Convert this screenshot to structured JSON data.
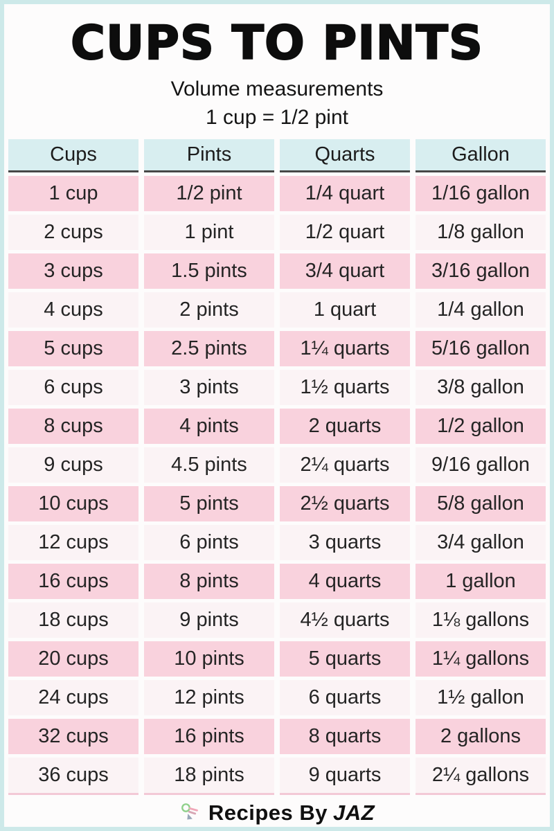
{
  "chart_data": {
    "type": "table",
    "title": "CUPS TO PINTS",
    "subtitle": "Volume measurements",
    "note": "1 cup = 1/2 pint",
    "columns": [
      "Cups",
      "Pints",
      "Quarts",
      "Gallon"
    ],
    "rows": [
      [
        "1 cup",
        "1/2 pint",
        "1/4 quart",
        "1/16 gallon"
      ],
      [
        "2 cups",
        "1 pint",
        "1/2 quart",
        "1/8 gallon"
      ],
      [
        "3 cups",
        "1.5 pints",
        "3/4 quart",
        "3/16 gallon"
      ],
      [
        "4 cups",
        "2 pints",
        "1 quart",
        "1/4 gallon"
      ],
      [
        "5 cups",
        "2.5 pints",
        "1¼ quarts",
        "5/16 gallon"
      ],
      [
        "6 cups",
        "3 pints",
        "1½ quarts",
        "3/8 gallon"
      ],
      [
        "8 cups",
        "4 pints",
        "2 quarts",
        "1/2 gallon"
      ],
      [
        "9 cups",
        "4.5 pints",
        "2¼ quarts",
        "9/16 gallon"
      ],
      [
        "10 cups",
        "5 pints",
        "2½ quarts",
        "5/8 gallon"
      ],
      [
        "12 cups",
        "6 pints",
        "3 quarts",
        "3/4 gallon"
      ],
      [
        "16 cups",
        "8 pints",
        "4 quarts",
        "1 gallon"
      ],
      [
        "18 cups",
        "9 pints",
        "4½ quarts",
        "1⅛ gallons"
      ],
      [
        "20 cups",
        "10 pints",
        "5 quarts",
        "1¼ gallons"
      ],
      [
        "24 cups",
        "12 pints",
        "6 quarts",
        "1½ gallon"
      ],
      [
        "32 cups",
        "16 pints",
        "8 quarts",
        "2 gallons"
      ],
      [
        "36 cups",
        "18 pints",
        "9 quarts",
        "2¼ gallons"
      ]
    ],
    "layout": {
      "header_position": "top",
      "row_striping": "pink-alternating"
    }
  },
  "footer": {
    "brand": "Recipes By",
    "brand_name": "JAZ",
    "icon": "whisk-icon"
  },
  "colors": {
    "frame_border": "#cde9e9",
    "header_bg": "#d8eef0",
    "header_underline": "#474747",
    "row_pink": "#f9d2dd",
    "row_light": "#fbf3f5",
    "last_row_underline": "#f3c9d6",
    "text": "#242424",
    "title_text": "#0d0d0d",
    "logo_green": "#8fd08a",
    "logo_pink": "#f0a7b8",
    "logo_gray": "#9aa7b8"
  }
}
